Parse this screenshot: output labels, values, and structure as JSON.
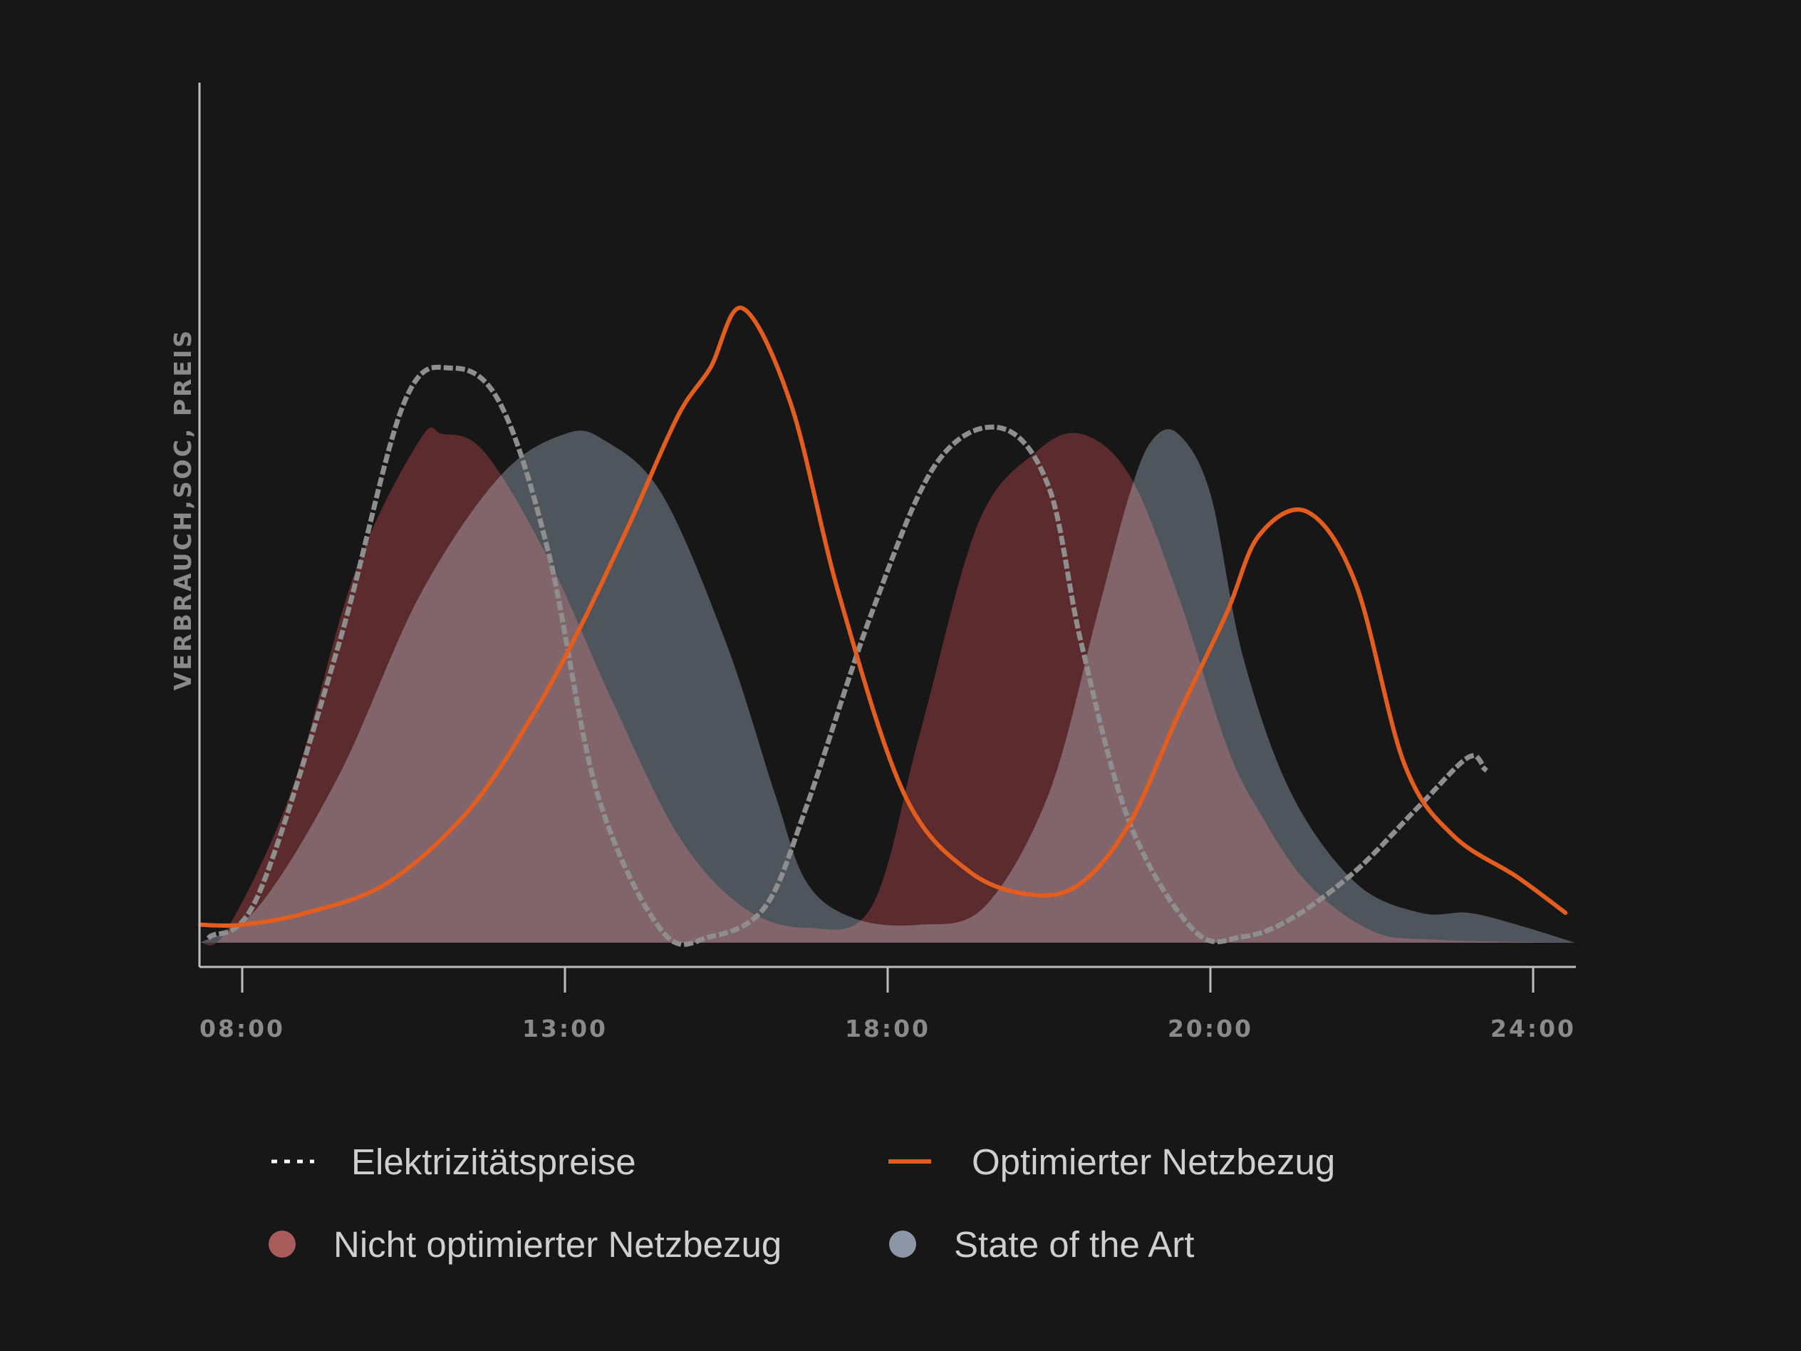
{
  "chart_data": {
    "type": "area",
    "title": "",
    "ylabel": "VERBRAUCH,SOC, PREIS",
    "xlabel": "",
    "x_ticks": [
      "08:00",
      "13:00",
      "18:00",
      "20:00",
      "24:00"
    ],
    "x_range": [
      -0.13,
      4.13
    ],
    "y_range": [
      0,
      100
    ],
    "grid": false,
    "legend_position": "bottom",
    "series": [
      {
        "name": "Nicht optimierter Netzbezug",
        "kind": "area",
        "color": "#5c2b2d",
        "x": [
          -0.13,
          -0.05,
          0.15,
          0.35,
          0.55,
          0.62,
          0.75,
          0.95,
          1.15,
          1.35,
          1.55,
          1.75,
          1.95,
          2.1,
          2.28,
          2.46,
          2.6,
          2.75,
          2.9,
          3.05,
          3.15,
          3.3,
          3.5,
          3.7,
          4.13
        ],
        "y": [
          0,
          2,
          25,
          62,
          84,
          85,
          82,
          64,
          40,
          18,
          6,
          2.5,
          6,
          35,
          70,
          82,
          85,
          78,
          58,
          33,
          22,
          10,
          2,
          0.5,
          0
        ]
      },
      {
        "name": "State of the Art",
        "kind": "area",
        "color": "#4f555c",
        "x": [
          -0.13,
          0.05,
          0.3,
          0.55,
          0.8,
          1.0,
          1.12,
          1.3,
          1.5,
          1.65,
          1.75,
          1.9,
          2.1,
          2.3,
          2.5,
          2.65,
          2.75,
          2.82,
          2.9,
          3.0,
          3.1,
          3.25,
          3.45,
          3.65,
          3.8,
          3.95,
          4.13
        ],
        "y": [
          0,
          6,
          28,
          58,
          78,
          85,
          84,
          75,
          50,
          25,
          10,
          4,
          3,
          6,
          25,
          55,
          75,
          84,
          85,
          75,
          48,
          25,
          10,
          5,
          5,
          3,
          0
        ]
      },
      {
        "name": "Elektrizitätspreise",
        "kind": "line",
        "dashed": true,
        "color": "#8e8e8e",
        "x": [
          -0.1,
          0.05,
          0.3,
          0.5,
          0.65,
          0.8,
          0.95,
          1.1,
          1.3,
          1.45,
          1.62,
          1.75,
          1.95,
          2.15,
          2.35,
          2.5,
          2.6,
          2.75,
          2.95,
          3.1,
          3.25,
          3.45,
          3.65,
          3.8,
          3.85
        ],
        "y": [
          1,
          8,
          50,
          90,
          96,
          90,
          65,
          25,
          2,
          1,
          6,
          23,
          55,
          80,
          86,
          76,
          50,
          20,
          2,
          1,
          4,
          12,
          23,
          31,
          29
        ]
      },
      {
        "name": "Optimierter Netzbezug",
        "kind": "line",
        "color": "#e35d1e",
        "x": [
          -0.13,
          0.0,
          0.2,
          0.45,
          0.7,
          0.9,
          1.05,
          1.2,
          1.35,
          1.45,
          1.55,
          1.7,
          1.85,
          2.05,
          2.25,
          2.45,
          2.6,
          2.75,
          2.9,
          3.05,
          3.15,
          3.3,
          3.45,
          3.6,
          3.75,
          3.95,
          4.1
        ],
        "y": [
          3,
          3,
          5,
          10,
          22,
          38,
          53,
          70,
          88,
          96,
          106,
          90,
          58,
          25,
          12,
          8,
          10,
          20,
          38,
          55,
          68,
          72,
          60,
          30,
          18,
          11,
          5
        ]
      }
    ]
  }
}
